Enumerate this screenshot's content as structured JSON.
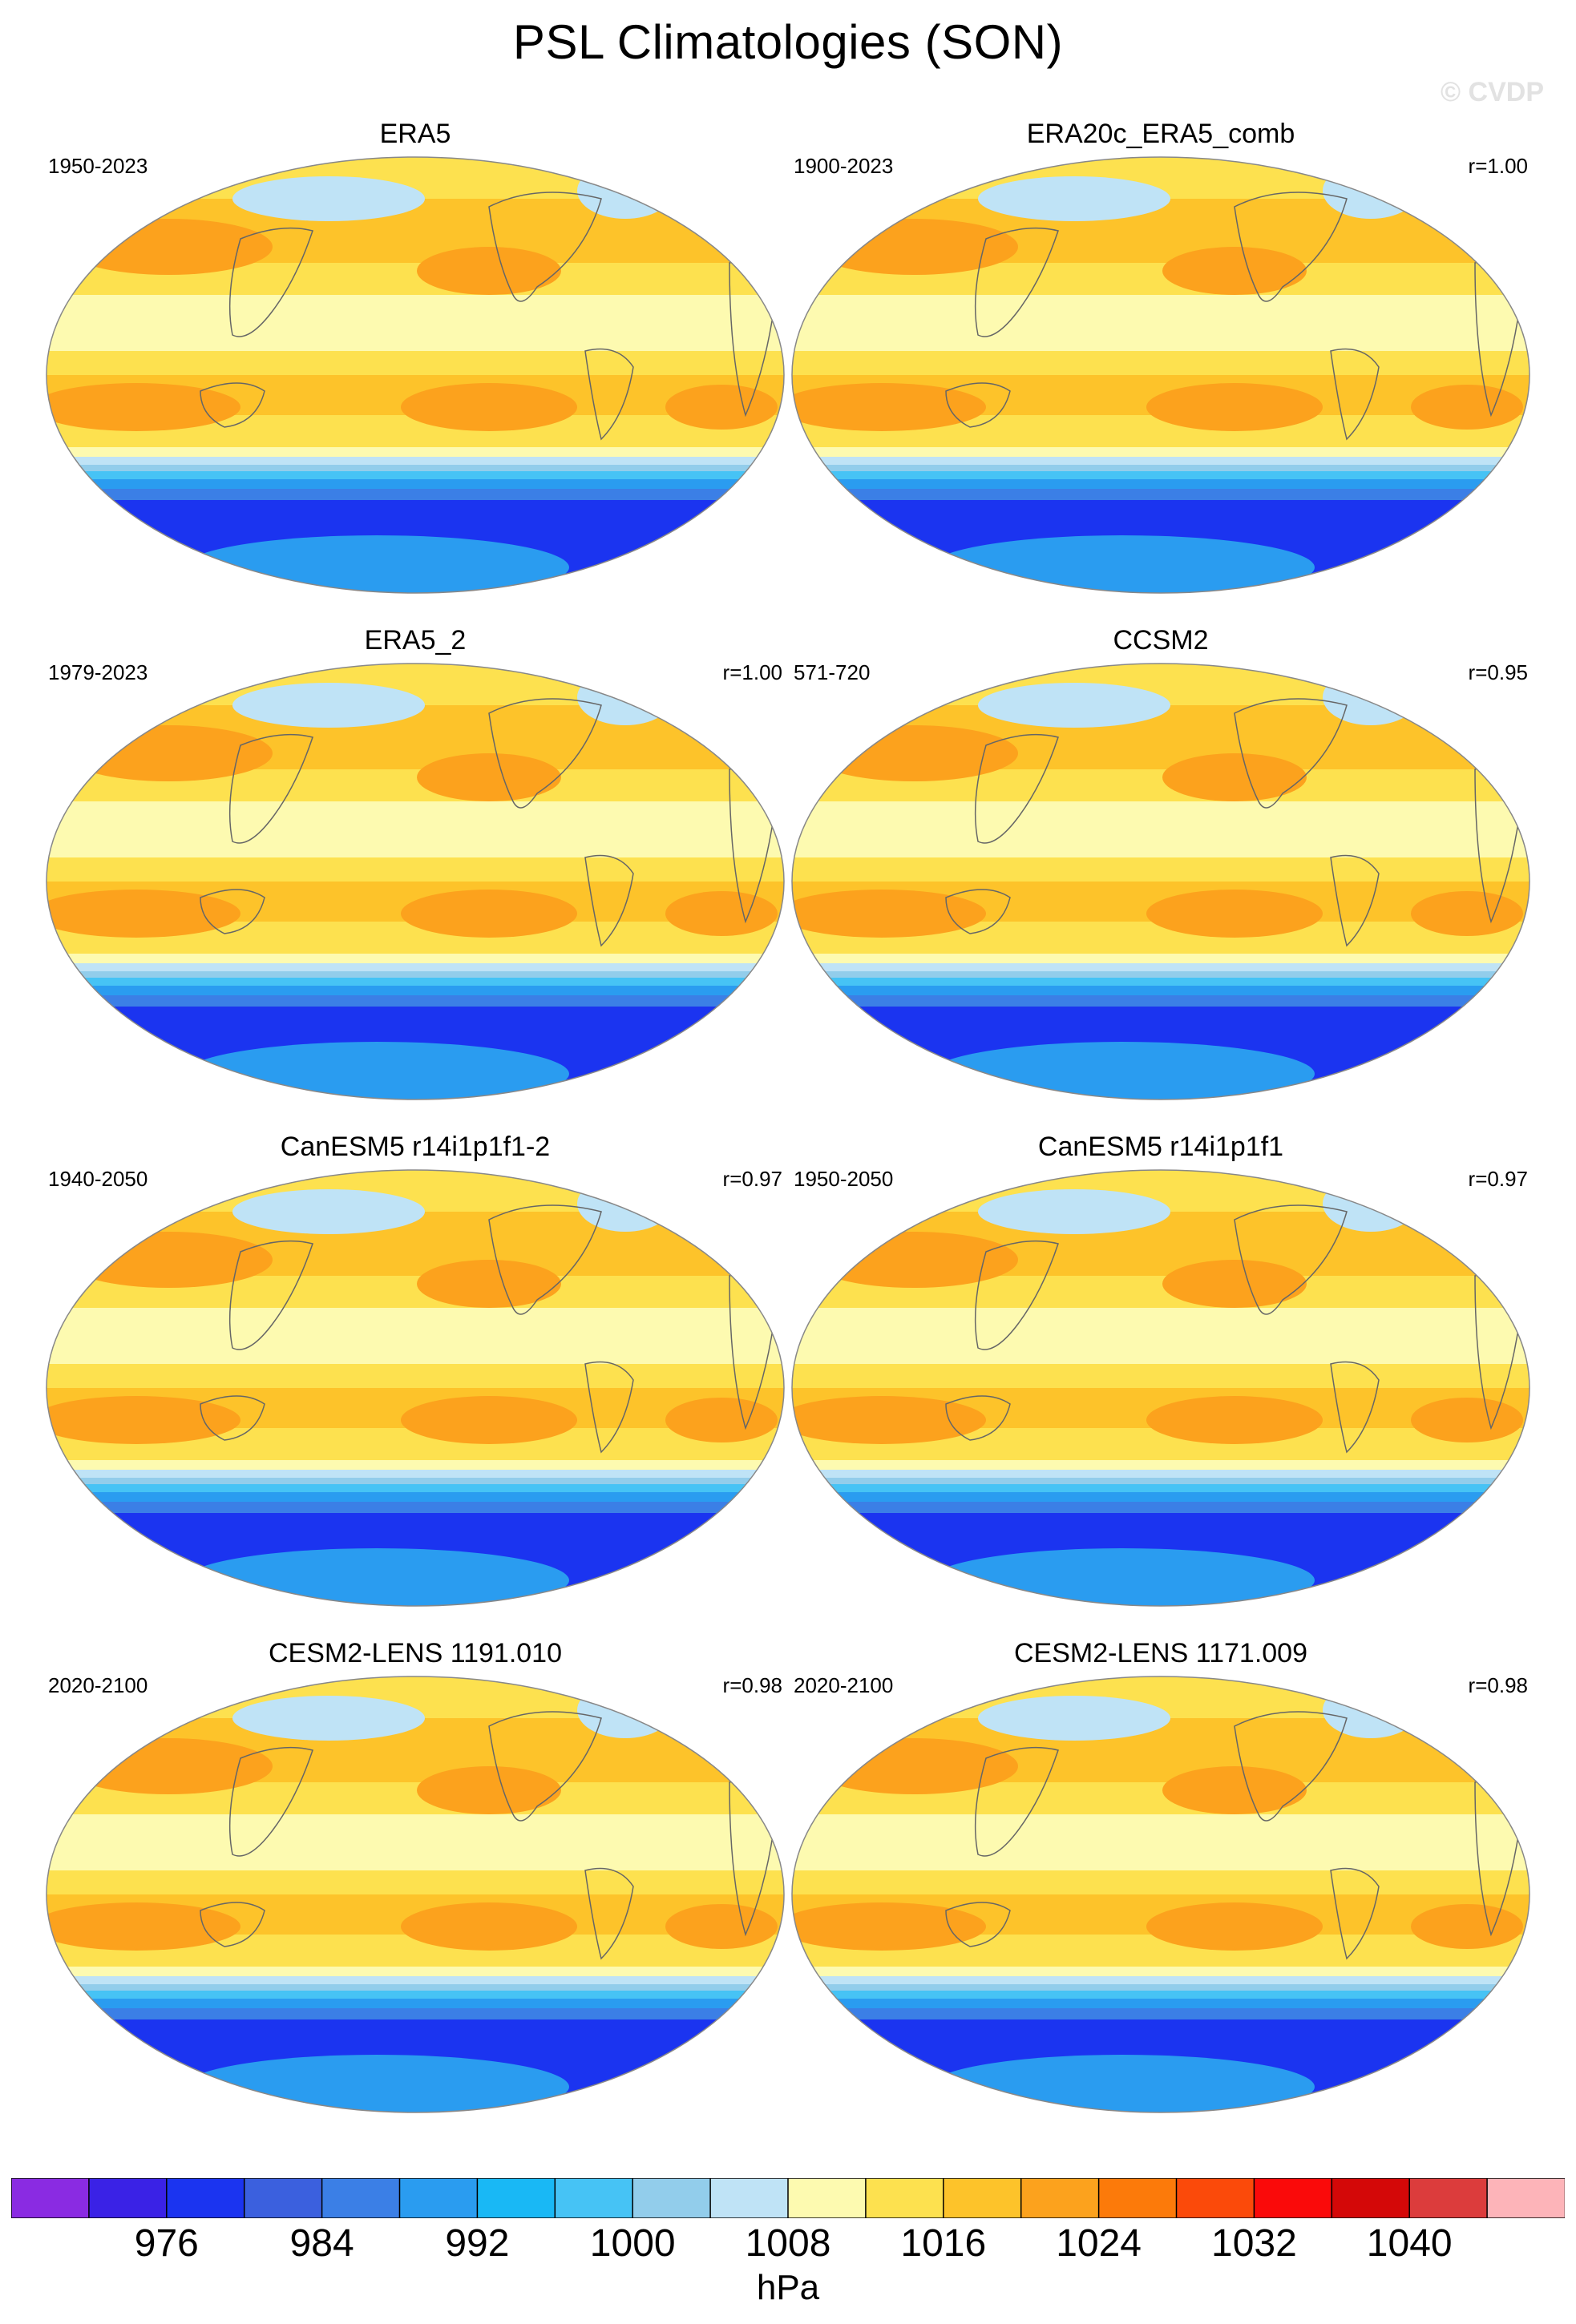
{
  "title": "PSL Climatologies (SON)",
  "watermark": "© CVDP",
  "panels": [
    {
      "title": "ERA5",
      "years": "1950-2023",
      "r": ""
    },
    {
      "title": "ERA20c_ERA5_comb",
      "years": "1900-2023",
      "r": "r=1.00"
    },
    {
      "title": "ERA5_2",
      "years": "1979-2023",
      "r": "r=1.00"
    },
    {
      "title": "CCSM2",
      "years": "571-720",
      "r": "r=0.95"
    },
    {
      "title": "CanESM5 r14i1p1f1-2",
      "years": "1940-2050",
      "r": "r=0.97"
    },
    {
      "title": "CanESM5 r14i1p1f1",
      "years": "1950-2050",
      "r": "r=0.97"
    },
    {
      "title": "CESM2-LENS 1191.010",
      "years": "2020-2100",
      "r": "r=0.98"
    },
    {
      "title": "CESM2-LENS 1171.009",
      "years": "2020-2100",
      "r": "r=0.98"
    }
  ],
  "colorbar": {
    "units": "hPa",
    "colors": [
      "#8a2be2",
      "#3a22e6",
      "#1b34f0",
      "#3b60de",
      "#3b7fe6",
      "#2a9cf0",
      "#19b8f5",
      "#46c3f5",
      "#92cdeb",
      "#bfe3f6",
      "#fdfab0",
      "#fde14f",
      "#fdc32a",
      "#fca21d",
      "#fc7a0a",
      "#fb4a0a",
      "#fa0a0a",
      "#d40808",
      "#dc3c3c",
      "#fdb4b9"
    ],
    "tick_labels": [
      "976",
      "984",
      "992",
      "1000",
      "1008",
      "1016",
      "1024",
      "1032",
      "1040"
    ]
  }
}
